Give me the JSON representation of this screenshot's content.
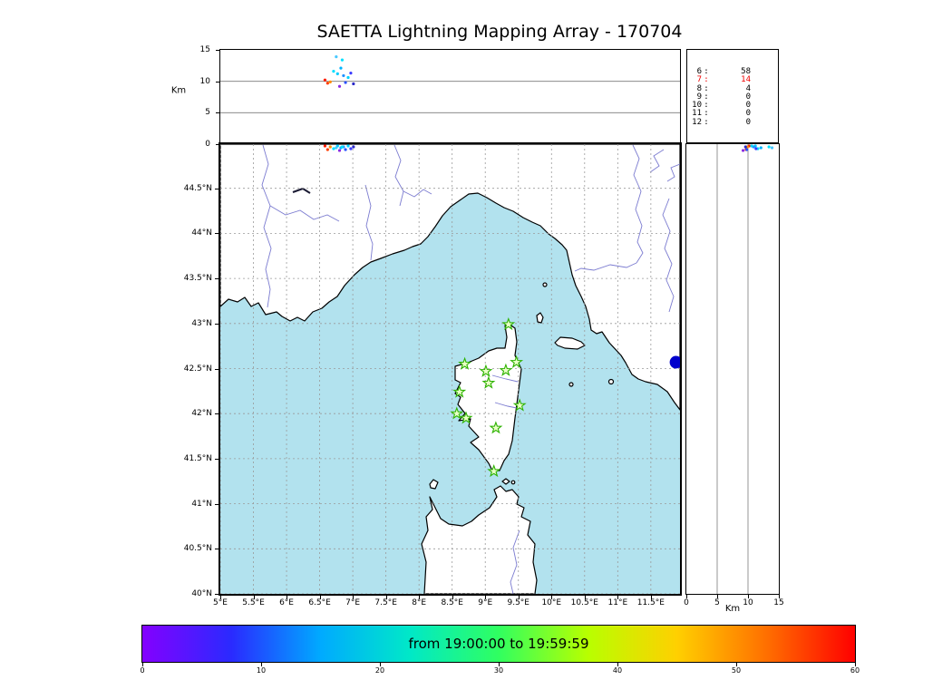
{
  "title": "SAETTA Lightning Mapping Array - 170704",
  "axis_labels": {
    "top_y": "Km",
    "right_x": "Km"
  },
  "colors": {
    "sea": "#b2e2ee",
    "land": "#ffffff",
    "coastline": "#000000",
    "grid": "#9a9a9a",
    "panel_grid": "#7a7a7a",
    "river": "#7b7bd0",
    "lake": "#1a1a33",
    "station_stroke": "#2db200",
    "station_fill": "#eaffc8",
    "sensor_dot": "#0000cc",
    "count_highlight": "#ee0000",
    "text": "#000000"
  },
  "chart_data": {
    "type": "scatter",
    "title": "SAETTA Lightning Mapping Array - 170704",
    "description": "Lightning source locations colored by time (19:00:00-19:59:59), SAETTA station map over Corsica (green stars), lon-altitude and lat-altitude side panels, and per-altitude source counts",
    "map_extent": {
      "lon_min": 5.0,
      "lon_max": 11.94,
      "lat_min": 40.0,
      "lat_max": 44.99
    },
    "alt_max": 15,
    "lon_ticks": [
      {
        "value": 5,
        "label": "5°E"
      },
      {
        "value": 5.5,
        "label": "5.5°E"
      },
      {
        "value": 6,
        "label": "6°E"
      },
      {
        "value": 6.5,
        "label": "6.5°E"
      },
      {
        "value": 7,
        "label": "7°E"
      },
      {
        "value": 7.5,
        "label": "7.5°E"
      },
      {
        "value": 8,
        "label": "8°E"
      },
      {
        "value": 8.5,
        "label": "8.5°E"
      },
      {
        "value": 9,
        "label": "9°E"
      },
      {
        "value": 9.5,
        "label": "9.5°E"
      },
      {
        "value": 10,
        "label": "10°E"
      },
      {
        "value": 10.5,
        "label": "10.5°E"
      },
      {
        "value": 11,
        "label": "11°E"
      },
      {
        "value": 11.5,
        "label": "11.5°E"
      }
    ],
    "lat_ticks": [
      {
        "value": 40,
        "label": "40°N"
      },
      {
        "value": 40.5,
        "label": "40.5°N"
      },
      {
        "value": 41,
        "label": "41°N"
      },
      {
        "value": 41.5,
        "label": "41.5°N"
      },
      {
        "value": 42,
        "label": "42°N"
      },
      {
        "value": 42.5,
        "label": "42.5°N"
      },
      {
        "value": 43,
        "label": "43°N"
      },
      {
        "value": 43.5,
        "label": "43.5°N"
      },
      {
        "value": 44,
        "label": "44°N"
      },
      {
        "value": 44.5,
        "label": "44.5°N"
      }
    ],
    "alt_ticks": [
      {
        "value": 0,
        "label": "0"
      },
      {
        "value": 5,
        "label": "5"
      },
      {
        "value": 10,
        "label": "10"
      },
      {
        "value": 15,
        "label": "15"
      }
    ],
    "stations_lon_lat": [
      [
        9.35,
        42.99
      ],
      [
        8.69,
        42.55
      ],
      [
        9.01,
        42.47
      ],
      [
        9.31,
        42.48
      ],
      [
        9.47,
        42.57
      ],
      [
        8.61,
        42.24
      ],
      [
        9.05,
        42.34
      ],
      [
        8.57,
        42.0
      ],
      [
        8.71,
        41.95
      ],
      [
        9.52,
        42.09
      ],
      [
        9.16,
        41.84
      ],
      [
        9.13,
        41.36
      ]
    ],
    "sensor_lon_lat": [
      11.88,
      42.57
    ],
    "sources_lon_lat_alt_color": [
      [
        6.58,
        44.97,
        10.2,
        "#ff1e00"
      ],
      [
        6.62,
        44.93,
        9.7,
        "#ff3c00"
      ],
      [
        6.66,
        44.96,
        9.9,
        "#ff8c00"
      ],
      [
        6.71,
        44.94,
        11.6,
        "#00e0ff"
      ],
      [
        6.77,
        44.97,
        11.2,
        "#00ccff"
      ],
      [
        6.82,
        44.95,
        12.1,
        "#00b4ff"
      ],
      [
        6.86,
        44.96,
        10.9,
        "#1e90ff"
      ],
      [
        6.89,
        44.93,
        9.8,
        "#2850ff"
      ],
      [
        6.93,
        44.97,
        10.6,
        "#00d2ff"
      ],
      [
        6.97,
        44.94,
        11.3,
        "#3c3cff"
      ],
      [
        7.01,
        44.96,
        9.6,
        "#2a28c8"
      ],
      [
        6.8,
        44.92,
        9.2,
        "#8a2be2"
      ],
      [
        6.84,
        44.96,
        13.4,
        "#00e0ff"
      ],
      [
        6.75,
        44.95,
        13.9,
        "#48c8ff"
      ]
    ],
    "altitude_counts": [
      {
        "altitude": "6",
        "count": "58",
        "color": "#000000"
      },
      {
        "altitude": "7",
        "count": "14",
        "color": "#ee0000"
      },
      {
        "altitude": "8",
        "count": "4",
        "color": "#000000"
      },
      {
        "altitude": "9",
        "count": "0",
        "color": "#000000"
      },
      {
        "altitude": "10",
        "count": "0",
        "color": "#000000"
      },
      {
        "altitude": "11",
        "count": "0",
        "color": "#000000"
      },
      {
        "altitude": "12",
        "count": "0",
        "color": "#000000"
      }
    ],
    "colorbar": {
      "label": "from 19:00:00 to 19:59:59",
      "min": 0,
      "max": 60,
      "ticks": [
        {
          "value": 0,
          "label": "0"
        },
        {
          "value": 10,
          "label": "10"
        },
        {
          "value": 20,
          "label": "20"
        },
        {
          "value": 30,
          "label": "30"
        },
        {
          "value": 40,
          "label": "40"
        },
        {
          "value": 50,
          "label": "50"
        },
        {
          "value": 60,
          "label": "60"
        }
      ],
      "gradient": [
        "#8400ff",
        "#2a2aff",
        "#00aaff",
        "#00e8c8",
        "#30ff60",
        "#b8ff00",
        "#ffd000",
        "#ff7000",
        "#ff0000"
      ]
    }
  }
}
